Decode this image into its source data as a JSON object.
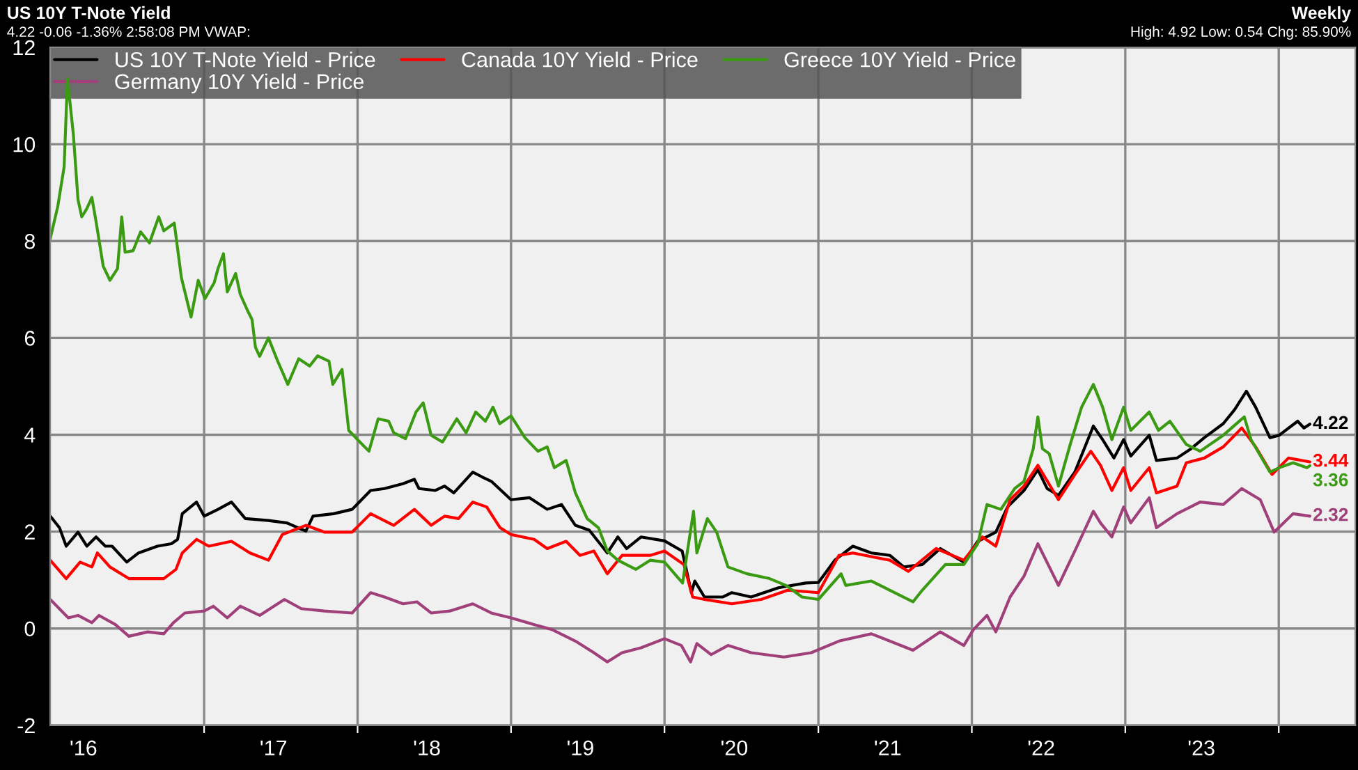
{
  "chart_data": {
    "type": "line",
    "title": "US 10Y T-Note Yield",
    "subtitle": "4.22 -0.06 -1.36% 2:58:08 PM VWAP:",
    "annotations": [
      "Weekly",
      "High: 4.92 Low: 0.54 Chg: 85.90%"
    ],
    "legend": "top left",
    "grid": true,
    "line_style": "solid",
    "xlim": [
      "2016-01-01",
      "2024-07-01"
    ],
    "ylim": [
      -2,
      12
    ],
    "yticks": [
      -2,
      0,
      2,
      4,
      6,
      8,
      10,
      12
    ],
    "xticks": [
      {
        "value": "2016-03-20",
        "label": "'16"
      },
      {
        "value": "2017-01-01",
        "label": null
      },
      {
        "value": "2017-06-15",
        "label": "'17"
      },
      {
        "value": "2018-01-01",
        "label": null
      },
      {
        "value": "2018-06-15",
        "label": "'18"
      },
      {
        "value": "2019-01-01",
        "label": null
      },
      {
        "value": "2019-06-15",
        "label": "'19"
      },
      {
        "value": "2020-01-01",
        "label": null
      },
      {
        "value": "2020-06-15",
        "label": "'20"
      },
      {
        "value": "2021-01-01",
        "label": null
      },
      {
        "value": "2021-06-15",
        "label": "'21"
      },
      {
        "value": "2022-01-01",
        "label": null
      },
      {
        "value": "2022-06-15",
        "label": "'22"
      },
      {
        "value": "2023-01-01",
        "label": null
      },
      {
        "value": "2023-07-01",
        "label": "'23"
      },
      {
        "value": "2024-01-01",
        "label": null
      }
    ],
    "series": [
      {
        "name": "US 10Y T-Note Yield - Price",
        "color": "#000000",
        "x": [
          "2016-01-01",
          "2016-01-23",
          "2016-02-08",
          "2016-03-07",
          "2016-03-28",
          "2016-04-19",
          "2016-05-11",
          "2016-05-27",
          "2016-07-01",
          "2016-07-29",
          "2016-09-12",
          "2016-10-15",
          "2016-10-30",
          "2016-11-10",
          "2016-12-14",
          "2017-01-01",
          "2017-02-03",
          "2017-03-07",
          "2017-04-09",
          "2017-06-03",
          "2017-07-17",
          "2017-08-31",
          "2017-09-17",
          "2017-11-05",
          "2017-12-19",
          "2018-02-01",
          "2018-03-06",
          "2018-04-19",
          "2018-05-16",
          "2018-05-27",
          "2018-07-05",
          "2018-07-27",
          "2018-08-18",
          "2018-10-02",
          "2018-10-24",
          "2018-11-15",
          "2019-01-01",
          "2019-02-14",
          "2019-03-28",
          "2019-05-01",
          "2019-06-03",
          "2019-07-06",
          "2019-08-18",
          "2019-09-12",
          "2019-10-03",
          "2019-11-06",
          "2020-01-01",
          "2020-02-12",
          "2020-03-05",
          "2020-03-13",
          "2020-04-05",
          "2020-05-18",
          "2020-06-09",
          "2020-07-25",
          "2020-09-28",
          "2020-12-02",
          "2021-01-01",
          "2021-02-09",
          "2021-03-24",
          "2021-05-07",
          "2021-06-20",
          "2021-07-23",
          "2021-09-05",
          "2021-10-18",
          "2021-12-13",
          "2022-01-15",
          "2022-02-27",
          "2022-03-27",
          "2022-05-05",
          "2022-06-07",
          "2022-06-29",
          "2022-07-26",
          "2022-09-03",
          "2022-10-17",
          "2022-11-08",
          "2022-12-05",
          "2022-12-28",
          "2023-01-14",
          "2023-02-27",
          "2023-03-16",
          "2023-05-04",
          "2023-06-06",
          "2023-07-08",
          "2023-08-22",
          "2023-09-18",
          "2023-10-16",
          "2023-11-07",
          "2023-12-11",
          "2024-01-02",
          "2024-02-15",
          "2024-03-01",
          "2024-03-15"
        ],
        "values": [
          2.32,
          2.08,
          1.7,
          1.99,
          1.7,
          1.89,
          1.7,
          1.7,
          1.37,
          1.56,
          1.7,
          1.75,
          1.84,
          2.37,
          2.61,
          2.32,
          2.46,
          2.61,
          2.27,
          2.23,
          2.18,
          2.01,
          2.32,
          2.37,
          2.46,
          2.85,
          2.89,
          2.99,
          3.08,
          2.89,
          2.85,
          2.94,
          2.8,
          3.23,
          3.13,
          3.04,
          2.66,
          2.7,
          2.46,
          2.56,
          2.13,
          2.03,
          1.56,
          1.89,
          1.65,
          1.89,
          1.81,
          1.6,
          0.74,
          0.98,
          0.65,
          0.65,
          0.74,
          0.65,
          0.84,
          0.94,
          0.95,
          1.41,
          1.7,
          1.56,
          1.51,
          1.27,
          1.32,
          1.65,
          1.37,
          1.8,
          1.99,
          2.51,
          2.85,
          3.28,
          2.89,
          2.75,
          3.23,
          4.18,
          3.9,
          3.52,
          3.9,
          3.56,
          3.99,
          3.47,
          3.52,
          3.71,
          3.94,
          4.23,
          4.52,
          4.9,
          4.57,
          3.94,
          3.99,
          4.28,
          4.14,
          4.22
        ],
        "value_labels": [
          null,
          null,
          null,
          null,
          null,
          null,
          null,
          null,
          null,
          null,
          null,
          null,
          null,
          null,
          null,
          null,
          null,
          null,
          null,
          null,
          null,
          null,
          null,
          null,
          null,
          null,
          null,
          null,
          null,
          null,
          null,
          null,
          null,
          null,
          null,
          null,
          null,
          null,
          null,
          null,
          null,
          null,
          null,
          null,
          null,
          null,
          null,
          null,
          null,
          null,
          null,
          null,
          null,
          null,
          null,
          null,
          null,
          null,
          null,
          null,
          null,
          null,
          null,
          null,
          null,
          null,
          null,
          null,
          null,
          null,
          null,
          null,
          null,
          null,
          null,
          null,
          null,
          null,
          null,
          null,
          null,
          null,
          null,
          null,
          null,
          null,
          null,
          null,
          null,
          null,
          null,
          "4.22"
        ]
      },
      {
        "name": "Canada 10Y Yield - Price",
        "color": "#ff0000",
        "x": [
          "2016-01-01",
          "2016-02-08",
          "2016-03-12",
          "2016-04-09",
          "2016-04-22",
          "2016-05-22",
          "2016-07-06",
          "2016-08-20",
          "2016-09-27",
          "2016-10-26",
          "2016-11-10",
          "2016-12-14",
          "2017-01-12",
          "2017-03-07",
          "2017-04-20",
          "2017-06-03",
          "2017-07-06",
          "2017-08-31",
          "2017-10-14",
          "2017-12-19",
          "2018-02-01",
          "2018-03-28",
          "2018-05-16",
          "2018-06-25",
          "2018-07-27",
          "2018-08-29",
          "2018-10-02",
          "2018-11-04",
          "2018-12-06",
          "2019-01-01",
          "2019-02-25",
          "2019-03-28",
          "2019-05-12",
          "2019-06-14",
          "2019-07-17",
          "2019-08-18",
          "2019-09-22",
          "2019-11-28",
          "2020-01-01",
          "2020-02-16",
          "2020-03-08",
          "2020-04-05",
          "2020-06-09",
          "2020-08-18",
          "2020-10-20",
          "2021-01-01",
          "2021-02-19",
          "2021-03-24",
          "2021-06-20",
          "2021-08-03",
          "2021-10-08",
          "2021-12-13",
          "2022-01-26",
          "2022-02-27",
          "2022-04-02",
          "2022-05-05",
          "2022-06-07",
          "2022-07-26",
          "2022-09-03",
          "2022-10-11",
          "2022-11-03",
          "2022-11-30",
          "2022-12-28",
          "2023-01-14",
          "2023-02-27",
          "2023-03-16",
          "2023-05-04",
          "2023-05-26",
          "2023-07-08",
          "2023-08-22",
          "2023-10-05",
          "2023-11-07",
          "2023-12-16",
          "2024-01-24",
          "2024-03-15"
        ],
        "values": [
          1.41,
          1.03,
          1.37,
          1.27,
          1.56,
          1.27,
          1.03,
          1.03,
          1.03,
          1.22,
          1.56,
          1.84,
          1.7,
          1.8,
          1.56,
          1.41,
          1.94,
          2.13,
          1.99,
          1.99,
          2.37,
          2.13,
          2.46,
          2.13,
          2.32,
          2.27,
          2.61,
          2.51,
          2.08,
          1.94,
          1.84,
          1.65,
          1.8,
          1.51,
          1.6,
          1.13,
          1.51,
          1.51,
          1.6,
          1.32,
          0.65,
          0.6,
          0.51,
          0.6,
          0.79,
          0.74,
          1.51,
          1.56,
          1.41,
          1.18,
          1.65,
          1.41,
          1.89,
          1.7,
          2.66,
          2.94,
          3.37,
          2.66,
          3.18,
          3.66,
          3.37,
          2.85,
          3.32,
          2.85,
          3.32,
          2.8,
          2.94,
          3.42,
          3.52,
          3.75,
          4.14,
          3.75,
          3.18,
          3.52,
          3.44
        ],
        "value_labels": [
          null,
          null,
          null,
          null,
          null,
          null,
          null,
          null,
          null,
          null,
          null,
          null,
          null,
          null,
          null,
          null,
          null,
          null,
          null,
          null,
          null,
          null,
          null,
          null,
          null,
          null,
          null,
          null,
          null,
          null,
          null,
          null,
          null,
          null,
          null,
          null,
          null,
          null,
          null,
          null,
          null,
          null,
          null,
          null,
          null,
          null,
          null,
          null,
          null,
          null,
          null,
          null,
          null,
          null,
          null,
          null,
          null,
          null,
          null,
          null,
          null,
          null,
          null,
          null,
          null,
          null,
          null,
          null,
          null,
          null,
          null,
          null,
          null,
          null,
          "3.44"
        ]
      },
      {
        "name": "Greece 10Y Yield - Price",
        "color": "#3a9a12",
        "x": [
          "2016-01-01",
          "2016-01-19",
          "2016-02-03",
          "2016-02-11",
          "2016-02-25",
          "2016-03-07",
          "2016-03-16",
          "2016-03-28",
          "2016-04-09",
          "2016-04-19",
          "2016-05-06",
          "2016-05-22",
          "2016-06-09",
          "2016-06-19",
          "2016-06-27",
          "2016-07-16",
          "2016-08-03",
          "2016-08-24",
          "2016-09-15",
          "2016-09-27",
          "2016-10-22",
          "2016-11-08",
          "2016-12-01",
          "2016-12-18",
          "2017-01-03",
          "2017-01-25",
          "2017-02-03",
          "2017-02-16",
          "2017-02-25",
          "2017-03-17",
          "2017-03-28",
          "2017-04-14",
          "2017-04-25",
          "2017-05-03",
          "2017-05-13",
          "2017-06-03",
          "2017-06-25",
          "2017-07-19",
          "2017-08-14",
          "2017-09-09",
          "2017-09-28",
          "2017-10-25",
          "2017-11-03",
          "2017-11-25",
          "2017-12-11",
          "2018-01-01",
          "2018-01-28",
          "2018-02-19",
          "2018-03-16",
          "2018-03-28",
          "2018-04-25",
          "2018-05-20",
          "2018-06-06",
          "2018-06-25",
          "2018-07-22",
          "2018-08-25",
          "2018-09-16",
          "2018-10-09",
          "2018-11-01",
          "2018-11-19",
          "2018-12-05",
          "2019-01-01",
          "2019-02-03",
          "2019-03-06",
          "2019-03-28",
          "2019-04-14",
          "2019-05-12",
          "2019-06-03",
          "2019-07-01",
          "2019-07-28",
          "2019-08-18",
          "2019-09-12",
          "2019-10-25",
          "2019-11-28",
          "2020-01-01",
          "2020-02-13",
          "2020-03-10",
          "2020-03-18",
          "2020-04-12",
          "2020-05-04",
          "2020-05-31",
          "2020-07-15",
          "2020-09-07",
          "2020-10-16",
          "2020-11-23",
          "2021-01-01",
          "2021-02-24",
          "2021-03-07",
          "2021-05-07",
          "2021-06-20",
          "2021-08-14",
          "2021-09-05",
          "2021-10-30",
          "2021-12-13",
          "2022-01-15",
          "2022-02-06",
          "2022-03-11",
          "2022-04-13",
          "2022-05-05",
          "2022-05-27",
          "2022-06-07",
          "2022-06-18",
          "2022-07-04",
          "2022-07-26",
          "2022-08-23",
          "2022-09-19",
          "2022-10-17",
          "2022-11-08",
          "2022-11-30",
          "2022-12-28",
          "2023-01-14",
          "2023-02-27",
          "2023-03-21",
          "2023-04-17",
          "2023-05-26",
          "2023-06-28",
          "2023-08-22",
          "2023-10-11",
          "2023-10-27",
          "2023-12-11",
          "2024-01-02",
          "2024-02-04",
          "2024-03-08",
          "2024-03-15"
        ],
        "values": [
          8.05,
          8.72,
          9.53,
          11.35,
          10.2,
          8.86,
          8.5,
          8.67,
          8.9,
          8.4,
          7.48,
          7.19,
          7.43,
          8.5,
          7.77,
          7.8,
          8.19,
          7.96,
          8.5,
          8.21,
          8.37,
          7.24,
          6.43,
          7.19,
          6.81,
          7.14,
          7.43,
          7.74,
          6.95,
          7.33,
          6.9,
          6.57,
          6.38,
          5.81,
          5.62,
          6.0,
          5.52,
          5.04,
          5.57,
          5.42,
          5.63,
          5.52,
          5.04,
          5.35,
          4.09,
          3.9,
          3.66,
          4.33,
          4.28,
          4.04,
          3.92,
          4.47,
          4.66,
          3.99,
          3.85,
          4.33,
          4.04,
          4.47,
          4.28,
          4.57,
          4.23,
          4.39,
          3.94,
          3.66,
          3.75,
          3.32,
          3.47,
          2.8,
          2.27,
          2.08,
          1.6,
          1.41,
          1.22,
          1.41,
          1.37,
          0.94,
          2.42,
          1.56,
          2.27,
          1.99,
          1.27,
          1.13,
          1.03,
          0.89,
          0.65,
          0.6,
          1.13,
          0.89,
          0.98,
          0.79,
          0.55,
          0.79,
          1.32,
          1.32,
          1.75,
          2.56,
          2.46,
          2.89,
          3.04,
          3.71,
          4.37,
          3.71,
          3.61,
          2.94,
          3.8,
          4.57,
          5.04,
          4.57,
          3.9,
          4.57,
          4.09,
          4.47,
          4.09,
          4.28,
          3.8,
          3.66,
          3.99,
          4.37,
          3.9,
          3.23,
          3.32,
          3.42,
          3.32,
          3.36
        ],
        "value_labels": [
          null,
          null,
          null,
          null,
          null,
          null,
          null,
          null,
          null,
          null,
          null,
          null,
          null,
          null,
          null,
          null,
          null,
          null,
          null,
          null,
          null,
          null,
          null,
          null,
          null,
          null,
          null,
          null,
          null,
          null,
          null,
          null,
          null,
          null,
          null,
          null,
          null,
          null,
          null,
          null,
          null,
          null,
          null,
          null,
          null,
          null,
          null,
          null,
          null,
          null,
          null,
          null,
          null,
          null,
          null,
          null,
          null,
          null,
          null,
          null,
          null,
          null,
          null,
          null,
          null,
          null,
          null,
          null,
          null,
          null,
          null,
          null,
          null,
          null,
          null,
          null,
          null,
          null,
          null,
          null,
          null,
          null,
          null,
          null,
          null,
          null,
          null,
          null,
          null,
          null,
          null,
          null,
          null,
          null,
          null,
          null,
          null,
          null,
          null,
          null,
          null,
          null,
          null,
          null,
          null,
          null,
          null,
          null,
          null,
          null,
          null,
          null,
          null,
          null,
          null,
          null,
          null,
          null,
          null,
          null,
          null,
          null,
          null,
          "3.36"
        ]
      },
      {
        "name": "Germany 10Y Yield - Price",
        "color": "#a0407a",
        "x": [
          "2016-01-01",
          "2016-02-13",
          "2016-03-07",
          "2016-04-09",
          "2016-04-26",
          "2016-06-04",
          "2016-07-06",
          "2016-08-20",
          "2016-09-27",
          "2016-10-20",
          "2016-11-16",
          "2017-01-01",
          "2017-01-23",
          "2017-02-25",
          "2017-03-28",
          "2017-05-13",
          "2017-07-11",
          "2017-08-20",
          "2017-10-14",
          "2017-12-19",
          "2018-02-01",
          "2018-03-06",
          "2018-04-19",
          "2018-05-22",
          "2018-06-25",
          "2018-08-08",
          "2018-10-02",
          "2018-11-15",
          "2019-01-01",
          "2019-02-25",
          "2019-04-08",
          "2019-06-03",
          "2019-07-17",
          "2019-08-18",
          "2019-09-22",
          "2019-11-06",
          "2020-01-01",
          "2020-02-10",
          "2020-03-03",
          "2020-03-18",
          "2020-04-21",
          "2020-05-31",
          "2020-07-25",
          "2020-10-11",
          "2020-12-15",
          "2021-02-19",
          "2021-05-07",
          "2021-08-14",
          "2021-10-18",
          "2021-12-13",
          "2022-01-05",
          "2022-02-06",
          "2022-02-27",
          "2022-04-02",
          "2022-05-05",
          "2022-06-07",
          "2022-07-26",
          "2022-09-03",
          "2022-10-17",
          "2022-11-03",
          "2022-11-30",
          "2022-12-28",
          "2023-01-14",
          "2023-02-27",
          "2023-03-16",
          "2023-05-04",
          "2023-06-28",
          "2023-08-22",
          "2023-10-05",
          "2023-11-18",
          "2023-12-21",
          "2024-02-04",
          "2024-03-15"
        ],
        "values": [
          0.6,
          0.22,
          0.27,
          0.12,
          0.27,
          0.08,
          -0.16,
          -0.07,
          -0.11,
          0.12,
          0.32,
          0.36,
          0.46,
          0.22,
          0.46,
          0.27,
          0.6,
          0.41,
          0.36,
          0.32,
          0.74,
          0.65,
          0.51,
          0.55,
          0.32,
          0.36,
          0.51,
          0.32,
          0.22,
          0.08,
          -0.02,
          -0.26,
          -0.5,
          -0.69,
          -0.5,
          -0.4,
          -0.21,
          -0.35,
          -0.69,
          -0.31,
          -0.54,
          -0.35,
          -0.5,
          -0.59,
          -0.5,
          -0.26,
          -0.11,
          -0.45,
          -0.07,
          -0.35,
          -0.02,
          0.27,
          -0.07,
          0.65,
          1.08,
          1.75,
          0.89,
          1.6,
          2.42,
          2.18,
          1.89,
          2.51,
          2.18,
          2.7,
          2.08,
          2.37,
          2.61,
          2.56,
          2.89,
          2.66,
          1.99,
          2.37,
          2.32
        ],
        "value_labels": [
          null,
          null,
          null,
          null,
          null,
          null,
          null,
          null,
          null,
          null,
          null,
          null,
          null,
          null,
          null,
          null,
          null,
          null,
          null,
          null,
          null,
          null,
          null,
          null,
          null,
          null,
          null,
          null,
          null,
          null,
          null,
          null,
          null,
          null,
          null,
          null,
          null,
          null,
          null,
          null,
          null,
          null,
          null,
          null,
          null,
          null,
          null,
          null,
          null,
          null,
          null,
          null,
          null,
          null,
          null,
          null,
          null,
          null,
          null,
          null,
          null,
          null,
          null,
          null,
          null,
          null,
          null,
          null,
          null,
          null,
          null,
          null,
          "2.32"
        ]
      }
    ]
  }
}
